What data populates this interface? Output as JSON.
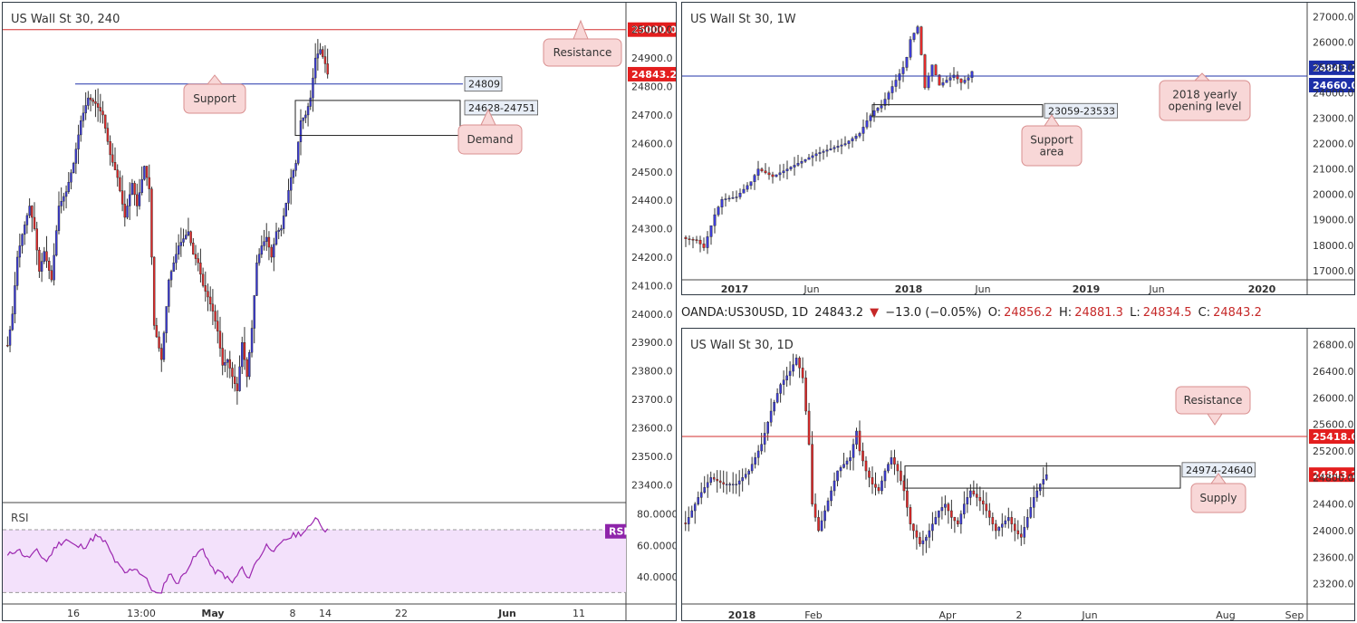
{
  "colors": {
    "up": "#3c3cd6",
    "down": "#e02a2a",
    "resistance": "#d32f2f",
    "support": "#2233aa",
    "callout_bg": "#f8d7d7",
    "callout_border": "#d98f8f",
    "rsi_line": "#9c27b0",
    "rsi_fill": "#f3e1fb",
    "price_tag": "#e31e1e",
    "blue_tag": "#1c2fa8",
    "rsi_tag": "#8e24aa"
  },
  "header": {
    "symbol": "OANDA:US30USD, 1D",
    "last": "24843.2",
    "arrow": "▼",
    "change": "−13.0 (−0.05%)",
    "o_label": "O:",
    "o": "24856.2",
    "h_label": "H:",
    "h": "24881.3",
    "l_label": "L:",
    "l": "24834.5",
    "c_label": "C:",
    "c": "24843.2"
  },
  "chart_data": [
    {
      "id": "h4",
      "type": "candlestick",
      "title": "US Wall St 30, 240",
      "ylim": [
        23350,
        25050
      ],
      "y_ticks": [
        "25000.0",
        "24900.0",
        "24800.0",
        "24700.0",
        "24600.0",
        "24500.0",
        "24400.0",
        "24300.0",
        "24200.0",
        "24100.0",
        "24000.0",
        "23900.0",
        "23800.0",
        "23700.0",
        "23600.0",
        "23500.0",
        "23400.0"
      ],
      "x_ticks": [
        "16",
        "13:00",
        "May",
        "8",
        "14",
        "22",
        "Jun",
        "11"
      ],
      "anchors": [
        [
          0,
          23890
        ],
        [
          2,
          24000
        ],
        [
          4,
          24200
        ],
        [
          6,
          24280
        ],
        [
          9,
          24380
        ],
        [
          11,
          24300
        ],
        [
          13,
          24150
        ],
        [
          15,
          24220
        ],
        [
          18,
          24120
        ],
        [
          21,
          24380
        ],
        [
          24,
          24430
        ],
        [
          27,
          24530
        ],
        [
          30,
          24680
        ],
        [
          33,
          24760
        ],
        [
          36,
          24740
        ],
        [
          39,
          24700
        ],
        [
          42,
          24560
        ],
        [
          45,
          24480
        ],
        [
          48,
          24340
        ],
        [
          51,
          24460
        ],
        [
          53,
          24380
        ],
        [
          56,
          24520
        ],
        [
          58,
          24440
        ],
        [
          60,
          23960
        ],
        [
          63,
          23840
        ],
        [
          66,
          24120
        ],
        [
          70,
          24240
        ],
        [
          74,
          24290
        ],
        [
          76,
          24210
        ],
        [
          78,
          24180
        ],
        [
          80,
          24100
        ],
        [
          82,
          24060
        ],
        [
          84,
          24010
        ],
        [
          86,
          23940
        ],
        [
          88,
          23820
        ],
        [
          90,
          23840
        ],
        [
          92,
          23780
        ],
        [
          94,
          23730
        ],
        [
          96,
          23900
        ],
        [
          98,
          23780
        ],
        [
          100,
          23950
        ],
        [
          102,
          24180
        ],
        [
          104,
          24240
        ],
        [
          106,
          24270
        ],
        [
          108,
          24200
        ],
        [
          110,
          24290
        ],
        [
          112,
          24300
        ],
        [
          114,
          24390
        ],
        [
          116,
          24480
        ],
        [
          118,
          24530
        ],
        [
          120,
          24680
        ],
        [
          122,
          24700
        ],
        [
          124,
          24760
        ],
        [
          126,
          24900
        ],
        [
          128,
          24930
        ],
        [
          130,
          24880
        ],
        [
          131,
          24843.2
        ]
      ],
      "annotations": {
        "resistance": {
          "value": 25000.0,
          "label": "25000.0",
          "callout": "Resistance"
        },
        "support": {
          "value": 24809,
          "label": "24809",
          "callout": "Support"
        },
        "demand": {
          "low": 24628,
          "high": 24751,
          "label": "24628-24751",
          "callout": "Demand"
        },
        "last_price": {
          "value": 24843.2,
          "label": "24843.2"
        }
      },
      "rsi": {
        "label": "RSI",
        "tag": "RSI",
        "ylim": [
          25,
          85
        ],
        "y_ticks": [
          "80.0000",
          "60.0000",
          "40.0000"
        ],
        "bands": [
          70,
          30
        ],
        "anchors": [
          [
            0,
            53
          ],
          [
            4,
            58
          ],
          [
            8,
            52
          ],
          [
            12,
            56
          ],
          [
            16,
            50
          ],
          [
            20,
            60
          ],
          [
            24,
            64
          ],
          [
            28,
            59
          ],
          [
            32,
            60
          ],
          [
            36,
            66
          ],
          [
            40,
            62
          ],
          [
            44,
            50
          ],
          [
            48,
            42
          ],
          [
            52,
            46
          ],
          [
            56,
            40
          ],
          [
            60,
            30
          ],
          [
            62,
            28
          ],
          [
            66,
            42
          ],
          [
            70,
            36
          ],
          [
            74,
            47
          ],
          [
            78,
            55
          ],
          [
            80,
            58
          ],
          [
            84,
            44
          ],
          [
            88,
            42
          ],
          [
            92,
            36
          ],
          [
            96,
            46
          ],
          [
            98,
            38
          ],
          [
            102,
            50
          ],
          [
            106,
            60
          ],
          [
            110,
            57
          ],
          [
            114,
            64
          ],
          [
            118,
            67
          ],
          [
            122,
            69
          ],
          [
            124,
            72
          ],
          [
            126,
            79
          ],
          [
            128,
            74
          ],
          [
            130,
            70
          ],
          [
            131,
            69
          ]
        ]
      }
    },
    {
      "id": "w1",
      "type": "candlestick",
      "title": "US Wall St 30, 1W",
      "ylim": [
        16850,
        27050
      ],
      "y_ticks": [
        "27000.0",
        "26000.0",
        "25000.0",
        "24000.0",
        "23000.0",
        "22000.0",
        "21000.0",
        "20000.0",
        "19000.0",
        "18000.0",
        "17000.0"
      ],
      "x_ticks": [
        "2017",
        "Jun",
        "2018",
        "Jun",
        "2019",
        "Jun",
        "2020"
      ],
      "anchors": [
        [
          0,
          18250
        ],
        [
          3,
          18200
        ],
        [
          5,
          17900
        ],
        [
          8,
          19200
        ],
        [
          10,
          19800
        ],
        [
          14,
          19900
        ],
        [
          18,
          20500
        ],
        [
          20,
          21000
        ],
        [
          24,
          20700
        ],
        [
          28,
          21000
        ],
        [
          32,
          21300
        ],
        [
          36,
          21600
        ],
        [
          40,
          21800
        ],
        [
          44,
          22000
        ],
        [
          48,
          22400
        ],
        [
          50,
          22900
        ],
        [
          52,
          23300
        ],
        [
          54,
          23500
        ],
        [
          56,
          24000
        ],
        [
          58,
          24500
        ],
        [
          60,
          25000
        ],
        [
          61,
          25400
        ],
        [
          62,
          26100
        ],
        [
          64,
          26600
        ],
        [
          65,
          25500
        ],
        [
          66,
          24200
        ],
        [
          68,
          25100
        ],
        [
          70,
          24300
        ],
        [
          72,
          24500
        ],
        [
          74,
          24700
        ],
        [
          76,
          24400
        ],
        [
          78,
          24600
        ],
        [
          79,
          24843.2
        ]
      ],
      "annotations": {
        "yearly_open": {
          "value": 24660.0,
          "label": "24660.0",
          "callout": "2018 yearly opening level"
        },
        "support_area": {
          "low": 23059,
          "high": 23533,
          "label": "23059-23533",
          "callout": "Support area"
        },
        "last_price": {
          "value": 24843.2,
          "label": "24843.2"
        }
      }
    },
    {
      "id": "d1",
      "type": "candlestick",
      "title": "US Wall St 30, 1D",
      "ylim": [
        22950,
        26850
      ],
      "y_ticks": [
        "26800.0",
        "26400.0",
        "26000.0",
        "25600.0",
        "25200.0",
        "24800.0",
        "24400.0",
        "24000.0",
        "23600.0",
        "23200.0"
      ],
      "x_ticks": [
        "2018",
        "Feb",
        "Apr",
        "2",
        "Jun",
        "Aug",
        "Sep"
      ],
      "anchors": [
        [
          0,
          24100
        ],
        [
          4,
          24500
        ],
        [
          8,
          24800
        ],
        [
          12,
          24700
        ],
        [
          16,
          24700
        ],
        [
          20,
          24900
        ],
        [
          24,
          25300
        ],
        [
          27,
          25800
        ],
        [
          30,
          26200
        ],
        [
          33,
          26400
        ],
        [
          35,
          26600
        ],
        [
          37,
          26300
        ],
        [
          38,
          25800
        ],
        [
          39,
          25300
        ],
        [
          40,
          24400
        ],
        [
          42,
          24000
        ],
        [
          44,
          24300
        ],
        [
          46,
          24600
        ],
        [
          48,
          24900
        ],
        [
          50,
          25000
        ],
        [
          52,
          25100
        ],
        [
          54,
          25500
        ],
        [
          55,
          25200
        ],
        [
          57,
          24900
        ],
        [
          59,
          24700
        ],
        [
          61,
          24600
        ],
        [
          63,
          24900
        ],
        [
          65,
          25100
        ],
        [
          67,
          24900
        ],
        [
          69,
          24600
        ],
        [
          71,
          24100
        ],
        [
          72,
          24000
        ],
        [
          74,
          23800
        ],
        [
          76,
          23900
        ],
        [
          78,
          24100
        ],
        [
          80,
          24300
        ],
        [
          82,
          24400
        ],
        [
          84,
          24200
        ],
        [
          86,
          24100
        ],
        [
          88,
          24400
        ],
        [
          90,
          24600
        ],
        [
          92,
          24500
        ],
        [
          94,
          24400
        ],
        [
          96,
          24200
        ],
        [
          98,
          24000
        ],
        [
          100,
          24100
        ],
        [
          102,
          24200
        ],
        [
          104,
          24000
        ],
        [
          106,
          23900
        ],
        [
          108,
          24200
        ],
        [
          110,
          24500
        ],
        [
          112,
          24700
        ],
        [
          114,
          24843.2
        ]
      ],
      "annotations": {
        "resistance": {
          "value": 25418.0,
          "label": "25418.0",
          "callout": "Resistance"
        },
        "supply": {
          "low": 24640,
          "high": 24974,
          "label": "24974-24640",
          "callout": "Supply"
        },
        "last_price": {
          "value": 24843.2,
          "label": "24843.2"
        }
      }
    }
  ]
}
